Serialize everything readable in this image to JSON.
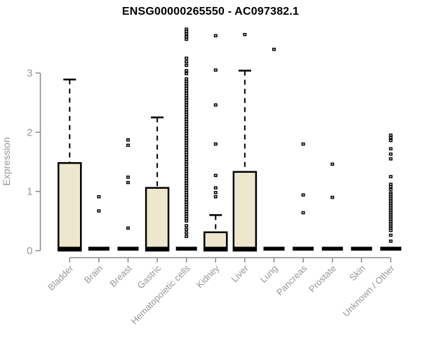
{
  "colors": {
    "background": "#ffffff",
    "box_fill": "#EDE8CD",
    "box_stroke": "#000000",
    "median": "#000000",
    "whisker": "#000000",
    "outlier": "#000000",
    "outlier_center": "#ffffff",
    "axis": "#8A8A8A",
    "tick_label": "#979797",
    "title": "#000000"
  },
  "chart_data": {
    "type": "boxplot",
    "title": "ENSG00000265550 - AC097382.1",
    "xlabel": "",
    "ylabel": "Expression",
    "ylim": [
      0,
      3.8
    ],
    "yticks": [
      0,
      1,
      2,
      3
    ],
    "grid": false,
    "legend": false,
    "categories": [
      "Bladder",
      "Brain",
      "Breast",
      "Gastric",
      "Hematopoietic cells",
      "Kidney",
      "Liver",
      "Lung",
      "Pancreas",
      "Prostate",
      "Skin",
      "Unknown / Other"
    ],
    "series": [
      {
        "label": "Bladder",
        "q1": 0,
        "median": 0.02,
        "q3": 1.48,
        "whisker_low": 0,
        "whisker_high": 2.89,
        "outliers": []
      },
      {
        "label": "Brain",
        "q1": 0,
        "median": 0.01,
        "q3": 0.02,
        "whisker_low": 0,
        "whisker_high": 0.02,
        "outliers": [
          0.67,
          0.91
        ]
      },
      {
        "label": "Breast",
        "q1": 0,
        "median": 0.01,
        "q3": 0.02,
        "whisker_low": 0,
        "whisker_high": 0.02,
        "outliers": [
          0.38,
          1.15,
          1.24,
          1.78,
          1.87
        ]
      },
      {
        "label": "Gastric",
        "q1": 0,
        "median": 0.02,
        "q3": 1.06,
        "whisker_low": 0,
        "whisker_high": 2.25,
        "outliers": []
      },
      {
        "label": "Hematopoietic cells",
        "q1": 0,
        "median": 0.01,
        "q3": 0.02,
        "whisker_low": 0,
        "whisker_high": 0.02,
        "outliers": [
          3.74,
          3.7,
          3.66,
          3.61,
          3.57,
          3.25,
          3.19,
          3.13,
          3.04,
          2.99,
          2.9,
          2.86,
          2.82,
          2.78,
          2.74,
          2.7,
          2.66,
          2.62,
          2.58,
          2.54,
          2.5,
          2.46,
          2.42,
          2.38,
          2.34,
          2.3,
          2.26,
          2.22,
          2.18,
          2.14,
          2.1,
          2.06,
          2.02,
          1.98,
          1.94,
          1.9,
          1.86,
          1.82,
          1.78,
          1.74,
          1.7,
          1.66,
          1.62,
          1.58,
          1.54,
          1.5,
          1.46,
          1.42,
          1.38,
          1.34,
          1.3,
          1.26,
          1.22,
          1.18,
          1.14,
          1.1,
          1.06,
          1.02,
          0.98,
          0.94,
          0.9,
          0.86,
          0.82,
          0.78,
          0.74,
          0.7,
          0.66,
          0.62,
          0.58,
          0.54,
          0.5,
          0.42,
          0.36,
          0.3,
          0.24
        ]
      },
      {
        "label": "Kidney",
        "q1": 0,
        "median": 0.02,
        "q3": 0.31,
        "whisker_low": 0,
        "whisker_high": 0.6,
        "outliers": [
          0.91,
          0.98,
          1.06,
          1.27,
          1.8,
          2.46,
          3.05,
          3.63
        ]
      },
      {
        "label": "Liver",
        "q1": 0,
        "median": 0.02,
        "q3": 1.33,
        "whisker_low": 0,
        "whisker_high": 3.04,
        "outliers": [
          3.65
        ]
      },
      {
        "label": "Lung",
        "q1": 0,
        "median": 0.01,
        "q3": 0.02,
        "whisker_low": 0,
        "whisker_high": 0.02,
        "outliers": [
          3.4
        ]
      },
      {
        "label": "Pancreas",
        "q1": 0,
        "median": 0.01,
        "q3": 0.02,
        "whisker_low": 0,
        "whisker_high": 0.02,
        "outliers": [
          0.64,
          0.94,
          1.8
        ]
      },
      {
        "label": "Prostate",
        "q1": 0,
        "median": 0.01,
        "q3": 0.02,
        "whisker_low": 0,
        "whisker_high": 0.02,
        "outliers": [
          0.9,
          1.46
        ]
      },
      {
        "label": "Skin",
        "q1": 0,
        "median": 0.01,
        "q3": 0.02,
        "whisker_low": 0,
        "whisker_high": 0.02,
        "outliers": []
      },
      {
        "label": "Unknown / Other",
        "q1": 0,
        "median": 0.01,
        "q3": 0.02,
        "whisker_low": 0,
        "whisker_high": 0.02,
        "outliers": [
          1.95,
          1.91,
          1.86,
          1.72,
          1.63,
          1.55,
          1.25,
          1.12,
          1.08,
          1.03,
          0.97,
          0.94,
          0.91,
          0.88,
          0.85,
          0.82,
          0.79,
          0.76,
          0.73,
          0.7,
          0.67,
          0.64,
          0.61,
          0.58,
          0.55,
          0.52,
          0.49,
          0.46,
          0.43,
          0.4,
          0.37,
          0.34,
          0.26,
          0.16
        ]
      }
    ]
  }
}
